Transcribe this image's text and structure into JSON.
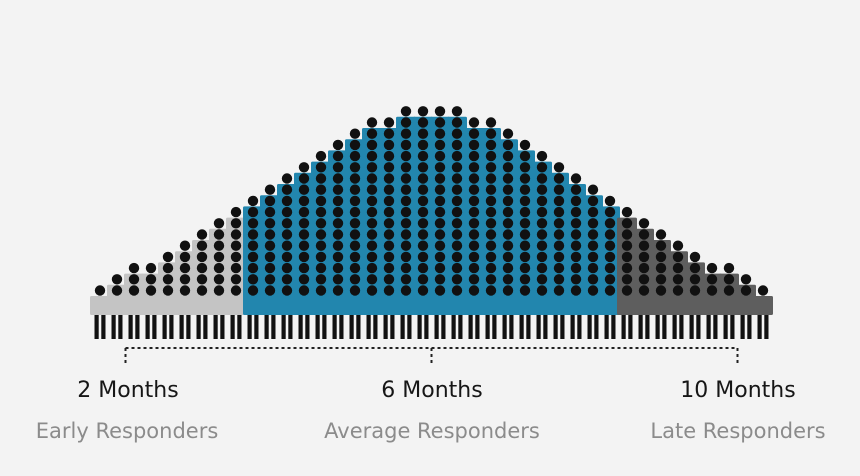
{
  "chart_data": {
    "type": "pictograph",
    "title": "",
    "xlabel": "",
    "ylabel": "",
    "unit_icon": "person-icon",
    "columns": [
      1,
      2,
      3,
      3,
      4,
      5,
      6,
      7,
      8,
      9,
      10,
      11,
      12,
      13,
      14,
      15,
      16,
      16,
      17,
      17,
      17,
      17,
      16,
      16,
      15,
      14,
      13,
      12,
      11,
      10,
      9,
      8,
      7,
      6,
      5,
      4,
      3,
      3,
      2,
      1
    ],
    "segments": [
      {
        "name": "Early Responders",
        "first_column": 0,
        "last_column": 8,
        "color": "#c4c4c4"
      },
      {
        "name": "Average Responders",
        "first_column": 9,
        "last_column": 30,
        "color": "#2286ae"
      },
      {
        "name": "Late Responders",
        "first_column": 31,
        "last_column": 39,
        "color": "#5e5e5e"
      }
    ],
    "axis_ticks": [
      {
        "label": "2 Months",
        "column": 1.5
      },
      {
        "label": "6 Months",
        "column": 19.5
      },
      {
        "label": "10 Months",
        "column": 37.5
      }
    ],
    "colors": {
      "head": "#111111",
      "legs": "#111111",
      "axis": "#222222"
    }
  },
  "labels": {
    "months": [
      "2 Months",
      "6 Months",
      "10 Months"
    ],
    "groups": [
      "Early Responders",
      "Average Responders",
      "Late Responders"
    ]
  }
}
